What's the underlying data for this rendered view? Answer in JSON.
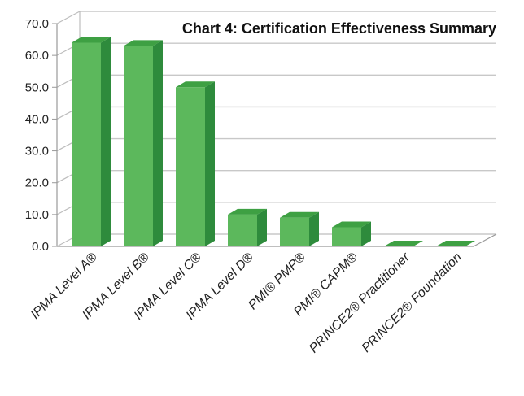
{
  "chart_data": {
    "type": "bar",
    "title": "Chart 4: Certification Effectiveness Summary",
    "xlabel": "",
    "ylabel": "",
    "ylim": [
      0,
      70
    ],
    "yticks": [
      "0.0",
      "10.0",
      "20.0",
      "30.0",
      "40.0",
      "50.0",
      "60.0",
      "70.0"
    ],
    "grid": true,
    "legend": "none",
    "categories": [
      "IPMA Level A®",
      "IPMA Level B®",
      "IPMA Level C®",
      "IPMA Level D®",
      "PMI® PMP®",
      "PMI® CAPM®",
      "PRINCE2® Practitioner",
      "PRINCE2® Foundation"
    ],
    "values": [
      64.0,
      63.0,
      50.0,
      10.0,
      9.0,
      6.0,
      0.0,
      0.0
    ],
    "colors": {
      "bar_front": "#5cb85c",
      "bar_top": "#3ea043",
      "bar_side": "#2e8b3c",
      "grid": "#c8c8c8"
    }
  }
}
